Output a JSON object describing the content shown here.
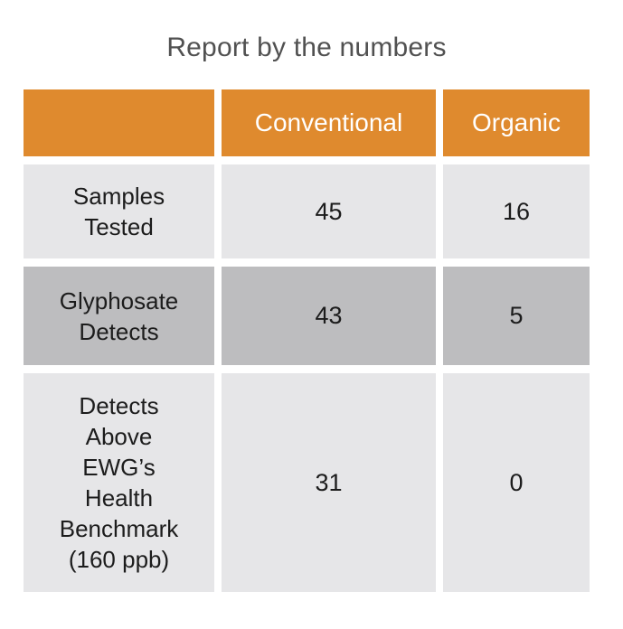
{
  "chart_data": {
    "type": "table",
    "title": "Report by the numbers",
    "columns": [
      "",
      "Conventional",
      "Organic"
    ],
    "rows": [
      {
        "label": "Samples Tested",
        "values": [
          45,
          16
        ]
      },
      {
        "label": "Glyphosate Detects",
        "values": [
          43,
          5
        ]
      },
      {
        "label": "Detects Above EWG’s Health Benchmark (160 ppb)",
        "values": [
          31,
          0
        ]
      }
    ]
  },
  "display": {
    "row_labels": [
      "Samples\nTested",
      "Glyphosate\nDetects",
      "Detects\nAbove\nEWG’s\nHealth\nBenchmark\n(160 ppb)"
    ]
  },
  "colors": {
    "header_bg": "#df8a2e",
    "header_text": "#ffffff",
    "row_light_bg": "#e6e6e8",
    "row_dark_bg": "#bdbdbf",
    "cell_text": "#1c1c1c",
    "title_text": "#515151"
  }
}
